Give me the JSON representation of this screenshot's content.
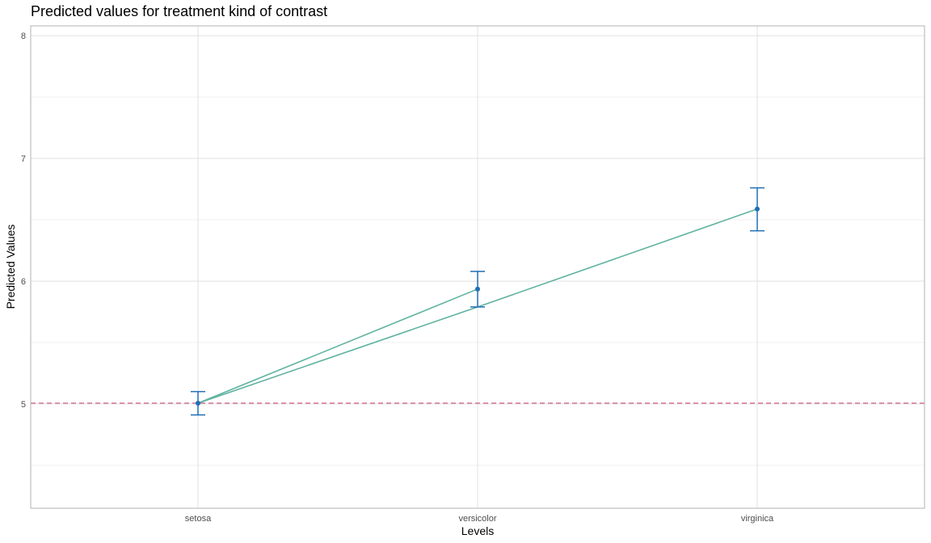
{
  "chart_data": {
    "type": "line",
    "title": "Predicted values for treatment kind of contrast",
    "xlabel": "Levels",
    "ylabel": "Predicted Values",
    "categories": [
      "setosa",
      "versicolor",
      "virginica"
    ],
    "ylim": [
      4.15,
      8.08
    ],
    "yticks": [
      5,
      6,
      7,
      8
    ],
    "grid": true,
    "legend": "none",
    "points": [
      {
        "x": "setosa",
        "y": 5.006,
        "lower": 4.91,
        "upper": 5.1
      },
      {
        "x": "versicolor",
        "y": 5.936,
        "lower": 5.79,
        "upper": 6.08
      },
      {
        "x": "virginica",
        "y": 6.588,
        "lower": 6.41,
        "upper": 6.76
      }
    ],
    "lines": [
      {
        "from": {
          "x": "setosa",
          "y": 5.006
        },
        "to": {
          "x": "versicolor",
          "y": 5.936
        }
      },
      {
        "from": {
          "x": "setosa",
          "y": 5.006
        },
        "to": {
          "x": "versicolor",
          "y": 5.79
        }
      },
      {
        "from": {
          "x": "versicolor",
          "y": 5.79
        },
        "to": {
          "x": "virginica",
          "y": 6.588
        }
      }
    ],
    "reference_line": {
      "y": 5.006,
      "style": "dashed"
    },
    "colors": {
      "point": "#1f6fb4",
      "errorbar": "#1f6fb4",
      "line": "#5fb3a0",
      "reference_line": "#d16a8e",
      "grid_major": "#e0e0e0",
      "grid_minor": "#f0f0f0",
      "border": "#b3b3b3"
    }
  }
}
